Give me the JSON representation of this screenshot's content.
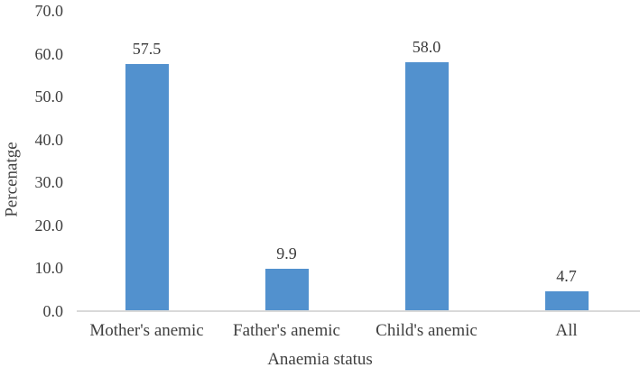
{
  "chart_data": {
    "type": "bar",
    "title": "",
    "categories": [
      "Mother's anemic",
      "Father's anemic",
      "Child's anemic",
      "All"
    ],
    "values": [
      57.5,
      9.9,
      58.0,
      4.7
    ],
    "value_labels": [
      "57.5",
      "9.9",
      "58.0",
      "4.7"
    ],
    "xlabel": "Anaemia status",
    "ylabel": "Percenatge",
    "ylim": [
      0,
      70
    ],
    "ytick_labels": [
      "0.0",
      "10.0",
      "20.0",
      "30.0",
      "40.0",
      "50.0",
      "60.0",
      "70.0"
    ],
    "ytick_values": [
      0,
      10,
      20,
      30,
      40,
      50,
      60,
      70
    ],
    "grid": false,
    "legend_position": "none",
    "bar_color": "#5291ce",
    "axis_line_color": "#d9d9d9",
    "text_color": "#3f3f3f"
  }
}
